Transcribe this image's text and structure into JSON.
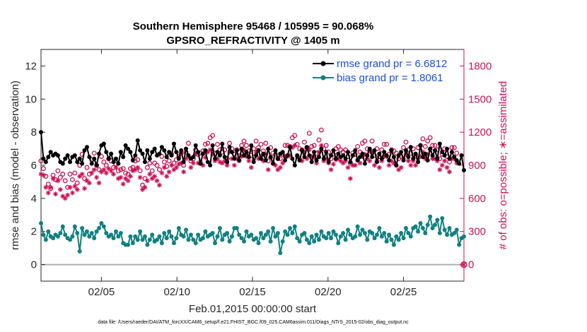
{
  "chart_data": {
    "type": "line",
    "title": [
      "Southern Hemisphere 95468 / 105995 = 90.068%",
      "GPSRO_REFRACTIVITY @ 1405 m"
    ],
    "xlabel": "Feb.01,2015 00:00:00 start",
    "ylabel_left": "rmse and bias (model - observation)",
    "ylabel_right": "# of obs: o=possible; ∗=assimilated",
    "x_ticks": [
      "02/05",
      "02/10",
      "02/15",
      "02/20",
      "02/25"
    ],
    "x_tick_days": [
      5,
      10,
      15,
      20,
      25
    ],
    "xlim_days": [
      1,
      29
    ],
    "ylim_left": [
      -1,
      13
    ],
    "y_ticks_left": [
      "0",
      "2",
      "4",
      "6",
      "8",
      "10",
      "12"
    ],
    "ylim_right": [
      -150,
      1950
    ],
    "y_ticks_right": [
      "0",
      "300",
      "600",
      "900",
      "1200",
      "1500",
      "1800"
    ],
    "grid": false,
    "legend_position": "top-right",
    "colors": {
      "rmse": "#000000",
      "bias": "#118080",
      "obs": "#cc1155",
      "right_axis": "#cc1155",
      "zero_line": "#b0b0b0"
    },
    "series": [
      {
        "name": "rmse grand pr = 6.6812",
        "axis": "left",
        "values": [
          8.0,
          6.4,
          6.2,
          6.5,
          6.8,
          6.6,
          6.7,
          6.6,
          6.2,
          6.1,
          6.4,
          6.6,
          6.2,
          6.5,
          6.6,
          6.2,
          6.4,
          6.1,
          6.9,
          7.1,
          6.5,
          6.1,
          6.4,
          6.0,
          6.7,
          7.2,
          7.3,
          6.8,
          6.4,
          6.7,
          6.2,
          6.4,
          6.1,
          6.8,
          6.5,
          7.2,
          7.0,
          6.8,
          6.3,
          6.6,
          7.5,
          6.9,
          6.7,
          6.2,
          6.9,
          6.4,
          6.8,
          7.0,
          6.6,
          6.7,
          7.1,
          6.9,
          6.5,
          6.8,
          6.6,
          7.3,
          6.8,
          6.4,
          6.9,
          6.2,
          7.0,
          6.6,
          6.4,
          6.5,
          7.2,
          6.8,
          6.1,
          6.7,
          6.9,
          6.2,
          6.0,
          7.2,
          6.4,
          6.8,
          6.6,
          7.3,
          6.5,
          6.2,
          7.1,
          6.8,
          6.4,
          6.9,
          6.3,
          7.0,
          6.6,
          6.8,
          6.5,
          7.2,
          6.2,
          6.6,
          6.9,
          6.4,
          6.7,
          6.3,
          7.0,
          6.5,
          6.1,
          6.9,
          6.4,
          6.7,
          6.8,
          6.3,
          6.6,
          7.1,
          6.4,
          6.0,
          6.6,
          6.3,
          6.9,
          6.5,
          7.1,
          6.6,
          6.2,
          6.8,
          6.3,
          6.5,
          7.0,
          6.4,
          6.8,
          6.2,
          6.6,
          6.9,
          6.4,
          6.7,
          6.5,
          6.6,
          6.4,
          6.8,
          6.2,
          6.6,
          6.9,
          6.3,
          6.5,
          6.7,
          6.1,
          6.6,
          7.0,
          6.5,
          6.9,
          6.2,
          6.7,
          6.4,
          6.8,
          6.6,
          6.3,
          6.9,
          6.5,
          6.0,
          6.6,
          6.8,
          6.3,
          6.9,
          6.5,
          7.1,
          6.4,
          6.7,
          6.2,
          7.2,
          6.5,
          6.7,
          6.3,
          7.0,
          6.6,
          6.9,
          6.4,
          7.3,
          6.8,
          6.6,
          7.0,
          6.4,
          6.8,
          6.5,
          6.3,
          6.1,
          6.6,
          5.7
        ]
      },
      {
        "name": "bias grand pr = 1.8061",
        "axis": "left",
        "values": [
          2.5,
          1.8,
          1.5,
          2.0,
          1.7,
          1.6,
          1.8,
          1.7,
          1.9,
          2.3,
          1.8,
          1.6,
          1.5,
          1.7,
          2.3,
          1.9,
          0.8,
          2.2,
          1.8,
          2.0,
          1.7,
          1.9,
          1.6,
          2.0,
          2.2,
          2.5,
          2.3,
          1.9,
          1.7,
          1.8,
          1.6,
          2.0,
          1.7,
          1.9,
          1.3,
          1.2,
          1.2,
          1.7,
          1.3,
          1.7,
          1.5,
          2.0,
          1.5,
          1.7,
          1.2,
          1.5,
          1.8,
          1.4,
          1.5,
          1.7,
          1.3,
          1.9,
          1.6,
          2.0,
          1.7,
          1.3,
          1.6,
          2.2,
          1.8,
          1.7,
          2.1,
          1.5,
          1.8,
          1.5,
          1.3,
          1.8,
          1.5,
          1.6,
          2.0,
          1.7,
          1.8,
          1.9,
          1.3,
          1.7,
          2.2,
          1.5,
          1.8,
          1.9,
          1.4,
          1.7,
          2.2,
          2.2,
          1.8,
          1.6,
          1.4,
          2.0,
          1.7,
          1.8,
          1.5,
          1.6,
          1.3,
          1.9,
          1.6,
          1.8,
          2.0,
          1.4,
          2.2,
          1.7,
          1.9,
          0.7,
          1.4,
          2.0,
          1.8,
          2.2,
          1.9,
          2.3,
          1.6,
          1.4,
          1.8,
          1.9,
          1.5,
          1.3,
          1.7,
          1.4,
          1.8,
          1.5,
          2.0,
          1.7,
          1.6,
          1.9,
          1.6,
          2.0,
          1.8,
          1.3,
          1.7,
          1.9,
          1.5,
          2.1,
          1.8,
          1.6,
          1.7,
          2.3,
          1.8,
          2.1,
          1.9,
          1.5,
          2.0,
          1.9,
          1.6,
          1.8,
          2.2,
          1.7,
          1.9,
          1.4,
          1.8,
          1.5,
          1.2,
          1.7,
          1.5,
          1.9,
          1.6,
          2.2,
          1.9,
          1.7,
          2.2,
          2.3,
          2.0,
          2.5,
          2.2,
          1.9,
          2.4,
          2.9,
          2.2,
          2.4,
          2.7,
          1.9,
          2.8,
          2.1,
          1.8,
          2.2,
          1.8,
          1.9,
          2.1,
          1.2,
          1.6,
          1.7
        ]
      },
      {
        "name": "possible",
        "axis": "right",
        "values": [
          940,
          870,
          800,
          730,
          690,
          810,
          770,
          850,
          790,
          820,
          760,
          700,
          820,
          770,
          830,
          740,
          900,
          1000,
          780,
          880,
          820,
          950,
          1010,
          900,
          860,
          980,
          930,
          900,
          960,
          940,
          880,
          910,
          850,
          860,
          870,
          830,
          820,
          870,
          880,
          940,
          950,
          850,
          720,
          780,
          880,
          920,
          850,
          920,
          900,
          860,
          980,
          930,
          890,
          940,
          1000,
          920,
          950,
          980,
          1010,
          900,
          1020,
          1100,
          940,
          960,
          1040,
          1000,
          1010,
          1030,
          1090,
          1100,
          1150,
          1170,
          1010,
          1090,
          1040,
          1020,
          1040,
          960,
          1100,
          1050,
          1000,
          1040,
          1020,
          1080,
          1120,
          1080,
          1030,
          990,
          1050,
          1120,
          1060,
          1090,
          1030,
          1100,
          940,
          1060,
          1010,
          1000,
          960,
          960,
          1000,
          1080,
          1080,
          1070,
          1150,
          1170,
          1090,
          1050,
          1040,
          1110,
          1060,
          1190,
          1070,
          1080,
          1010,
          1130,
          1220,
          1050,
          1080,
          1020,
          960,
          1000,
          1050,
          1070,
          1040,
          1020,
          1040,
          980,
          920,
          1010,
          1000,
          1070,
          1020,
          1100,
          1120,
          1050,
          1030,
          1120,
          990,
          1050,
          980,
          1040,
          1090,
          1090,
          1000,
          1040,
          1030,
          1010,
          960,
          980,
          1060,
          1110,
          1040,
          1010,
          1050,
          990,
          1060,
          1080,
          1140,
          1070,
          1120,
          1150,
          1080,
          1080,
          1040,
          960,
          1000,
          1050,
          980,
          930,
          1060,
          1060,
          1010
        ]
      },
      {
        "name": "assimilated",
        "axis": "right",
        "values": [
          820,
          810,
          700,
          650,
          700,
          780,
          640,
          760,
          680,
          620,
          600,
          630,
          700,
          650,
          710,
          680,
          800,
          820,
          690,
          760,
          740,
          830,
          860,
          790,
          740,
          840,
          860,
          830,
          870,
          850,
          820,
          880,
          780,
          790,
          730,
          780,
          760,
          800,
          850,
          860,
          880,
          790,
          680,
          700,
          760,
          820,
          780,
          800,
          760,
          720,
          830,
          880,
          800,
          840,
          900,
          860,
          880,
          910,
          920,
          840,
          960,
          980,
          880,
          920,
          1000,
          920,
          930,
          900,
          970,
          1020,
          1040,
          1000,
          940,
          960,
          930,
          920,
          940,
          900,
          1020,
          960,
          900,
          960,
          940,
          980,
          1040,
          980,
          940,
          880,
          950,
          1020,
          960,
          980,
          940,
          1000,
          860,
          970,
          920,
          900,
          860,
          880,
          920,
          980,
          980,
          990,
          1060,
          1080,
          980,
          960,
          940,
          1020,
          960,
          1040,
          980,
          970,
          920,
          1020,
          1080,
          940,
          960,
          920,
          860,
          910,
          950,
          960,
          940,
          920,
          940,
          880,
          780,
          900,
          900,
          950,
          920,
          980,
          1000,
          960,
          940,
          1020,
          900,
          940,
          880,
          940,
          980,
          980,
          900,
          940,
          920,
          900,
          860,
          880,
          960,
          1000,
          940,
          900,
          940,
          900,
          960,
          980,
          1020,
          960,
          1000,
          1040,
          960,
          960,
          940,
          860,
          900,
          940,
          880,
          840,
          960,
          960,
          920
        ]
      }
    ],
    "annotations": [
      "data file: /Users/raeder/DAI/ATM_forcXX/CAM6_setup/f.e21.FHIST_BGC.f09_025.CAM6assim.011/Diags_NTrS_2015-02/obs_diag_output.nc"
    ],
    "final_possible_marker_value": 0
  }
}
